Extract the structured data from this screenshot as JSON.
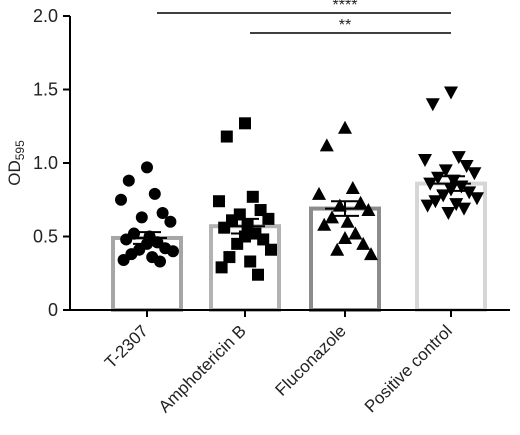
{
  "chart_data": {
    "type": "bar",
    "ylabel_main": "OD",
    "ylabel_sub": "595",
    "ylim": [
      0,
      2.0
    ],
    "yticks": [
      "0",
      "0.5",
      "1.0",
      "1.5",
      "2.0"
    ],
    "categories": [
      "T-2307",
      "Amphotericin B",
      "Fluconazole",
      "Positive control"
    ],
    "means": [
      0.49,
      0.57,
      0.69,
      0.86
    ],
    "sem": [
      0.04,
      0.05,
      0.05,
      0.05
    ],
    "bar_colors": [
      "#a6a6a6",
      "#b3b3b3",
      "#8c8c8c",
      "#d6d6d6"
    ],
    "markers": [
      "circle",
      "square",
      "triangle-up",
      "triangle-down"
    ],
    "points": [
      [
        0.97,
        0.88,
        0.79,
        0.75,
        0.66,
        0.63,
        0.6,
        0.52,
        0.5,
        0.48,
        0.46,
        0.45,
        0.42,
        0.41,
        0.4,
        0.38,
        0.36,
        0.34,
        0.33
      ],
      [
        1.27,
        1.18,
        0.77,
        0.74,
        0.68,
        0.65,
        0.62,
        0.61,
        0.58,
        0.56,
        0.52,
        0.5,
        0.48,
        0.45,
        0.41,
        0.36,
        0.33,
        0.29,
        0.24
      ],
      [
        1.24,
        1.12,
        0.83,
        0.79,
        0.73,
        0.71,
        0.68,
        0.63,
        0.6,
        0.58,
        0.52,
        0.49,
        0.45,
        0.41,
        0.38
      ],
      [
        1.48,
        1.4,
        1.04,
        1.02,
        0.98,
        0.95,
        0.93,
        0.9,
        0.88,
        0.86,
        0.84,
        0.82,
        0.8,
        0.78,
        0.76,
        0.74,
        0.72,
        0.71,
        0.69,
        0.66
      ]
    ],
    "significance": [
      {
        "from": 0,
        "to": 3,
        "label": "****"
      },
      {
        "from": 1,
        "to": 3,
        "label": "**"
      }
    ]
  }
}
